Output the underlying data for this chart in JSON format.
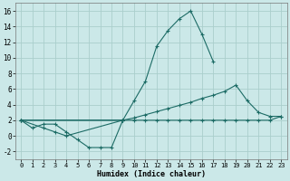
{
  "xlabel": "Humidex (Indice chaleur)",
  "xlim": [
    -0.5,
    23.5
  ],
  "ylim": [
    -3.0,
    17.0
  ],
  "yticks": [
    -2,
    0,
    2,
    4,
    6,
    8,
    10,
    12,
    14,
    16
  ],
  "xticks": [
    0,
    1,
    2,
    3,
    4,
    5,
    6,
    7,
    8,
    9,
    10,
    11,
    12,
    13,
    14,
    15,
    16,
    17,
    18,
    19,
    20,
    21,
    22,
    23
  ],
  "bg_color": "#cbe8e8",
  "grid_color": "#aacecc",
  "line_color": "#1c6b65",
  "line_peak_x": [
    0,
    1,
    2,
    3,
    4,
    5,
    6,
    7,
    8,
    9,
    10,
    11,
    12,
    13,
    14,
    15,
    16,
    17
  ],
  "line_peak_y": [
    2.0,
    1.0,
    1.5,
    1.5,
    0.5,
    -0.5,
    -1.5,
    -1.5,
    -1.5,
    2.0,
    4.5,
    7.0,
    11.5,
    13.5,
    15.0,
    16.0,
    13.0,
    9.5
  ],
  "line_diag_x": [
    0,
    9,
    10,
    11,
    12,
    13,
    14,
    15,
    16,
    17,
    18,
    19,
    20,
    21,
    22,
    23
  ],
  "line_diag_y": [
    2.0,
    2.0,
    2.3,
    2.7,
    3.1,
    3.5,
    3.9,
    4.3,
    4.8,
    5.2,
    5.7,
    6.5,
    4.5,
    3.0,
    2.5,
    2.5
  ],
  "line_flat_x": [
    0,
    9,
    10,
    11,
    12,
    13,
    14,
    15,
    16,
    17,
    18,
    19,
    20,
    21,
    22,
    23
  ],
  "line_flat_y": [
    2.0,
    2.0,
    2.0,
    2.0,
    2.0,
    2.0,
    2.0,
    2.0,
    2.0,
    2.0,
    2.0,
    2.0,
    2.0,
    2.0,
    2.0,
    2.5
  ],
  "line_dip_x": [
    0,
    2,
    3,
    4,
    9
  ],
  "line_dip_y": [
    2.0,
    1.0,
    0.5,
    0.0,
    2.0
  ]
}
